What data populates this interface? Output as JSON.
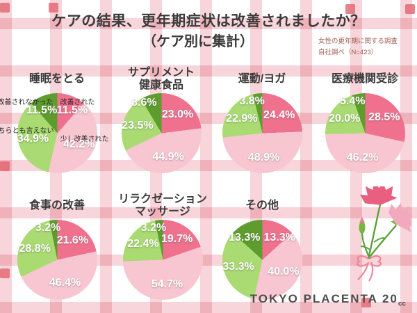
{
  "header": {
    "title_line1": "ケアの結果、更年期症状は改善されましたか？",
    "title_line2": "（ケア別に集計）",
    "note_line1": "女性の更年期に関する調査",
    "note_line2": "自社調べ（N=423）"
  },
  "footer": {
    "brand": "TOKYO PLACENTA 20",
    "brand_unit": "cc"
  },
  "palette": {
    "improved": "#f0718e",
    "slightly_improved": "#f8c6d1",
    "neither": "#a9db72",
    "not_improved": "#5e9c2e"
  },
  "chart_data": [
    {
      "type": "pie",
      "title": "睡眠をとる",
      "title_lines": [
        "睡眠をとる"
      ],
      "unit": "%",
      "legend_position": "around-first-pie",
      "slices": [
        {
          "label": "改善された",
          "value": 11.5,
          "color": "improved"
        },
        {
          "label": "少し改善された",
          "value": 42.2,
          "color": "slightly_improved"
        },
        {
          "label": "どちらとも言えない",
          "value": 34.9,
          "color": "neither"
        },
        {
          "label": "改善されなかった",
          "value": 11.5,
          "color": "not_improved"
        }
      ]
    },
    {
      "type": "pie",
      "title": "サプリメント健康食品",
      "title_lines": [
        "サプリメント",
        "健康食品"
      ],
      "unit": "%",
      "slices": [
        {
          "label": "改善された",
          "value": 23.0,
          "color": "improved"
        },
        {
          "label": "少し改善された",
          "value": 44.9,
          "color": "slightly_improved"
        },
        {
          "label": "どちらとも言えない",
          "value": 23.5,
          "color": "neither"
        },
        {
          "label": "改善されなかった",
          "value": 8.6,
          "color": "not_improved"
        }
      ]
    },
    {
      "type": "pie",
      "title": "運動/ヨガ",
      "title_lines": [
        "運動/ヨガ"
      ],
      "unit": "%",
      "slices": [
        {
          "label": "改善された",
          "value": 24.4,
          "color": "improved"
        },
        {
          "label": "少し改善された",
          "value": 48.9,
          "color": "slightly_improved"
        },
        {
          "label": "どちらとも言えない",
          "value": 22.9,
          "color": "neither"
        },
        {
          "label": "改善されなかった",
          "value": 3.8,
          "color": "not_improved"
        }
      ]
    },
    {
      "type": "pie",
      "title": "医療機関受診",
      "title_lines": [
        "医療機関受診"
      ],
      "unit": "%",
      "slices": [
        {
          "label": "改善された",
          "value": 28.5,
          "color": "improved"
        },
        {
          "label": "少し改善された",
          "value": 46.2,
          "color": "slightly_improved"
        },
        {
          "label": "どちらとも言えない",
          "value": 20.0,
          "color": "neither"
        },
        {
          "label": "改善されなかった",
          "value": 5.4,
          "color": "not_improved"
        }
      ]
    },
    {
      "type": "pie",
      "title": "食事の改善",
      "title_lines": [
        "食事の改善"
      ],
      "unit": "%",
      "slices": [
        {
          "label": "改善された",
          "value": 21.6,
          "color": "improved"
        },
        {
          "label": "少し改善された",
          "value": 46.4,
          "color": "slightly_improved"
        },
        {
          "label": "どちらとも言えない",
          "value": 28.8,
          "color": "neither"
        },
        {
          "label": "改善されなかった",
          "value": 3.2,
          "color": "not_improved"
        }
      ]
    },
    {
      "type": "pie",
      "title": "リラクゼーションマッサージ",
      "title_lines": [
        "リラクゼーション",
        "マッサージ"
      ],
      "unit": "%",
      "slices": [
        {
          "label": "改善された",
          "value": 19.7,
          "color": "improved"
        },
        {
          "label": "少し改善された",
          "value": 54.7,
          "color": "slightly_improved"
        },
        {
          "label": "どちらとも言えない",
          "value": 22.4,
          "color": "neither"
        },
        {
          "label": "改善されなかった",
          "value": 3.2,
          "color": "not_improved"
        }
      ]
    },
    {
      "type": "pie",
      "title": "その他",
      "title_lines": [
        "その他"
      ],
      "unit": "%",
      "slices": [
        {
          "label": "改善された",
          "value": 13.3,
          "color": "improved"
        },
        {
          "label": "少し改善された",
          "value": 40.0,
          "color": "slightly_improved"
        },
        {
          "label": "どちらとも言えない",
          "value": 33.3,
          "color": "neither"
        },
        {
          "label": "改善されなかった",
          "value": 13.3,
          "color": "not_improved"
        }
      ]
    }
  ]
}
